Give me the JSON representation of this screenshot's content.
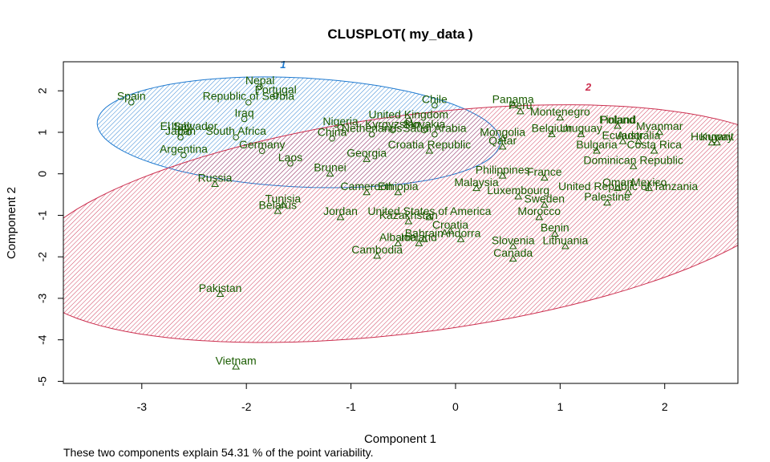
{
  "chart_data": {
    "type": "scatter",
    "title": "CLUSPLOT( my_data )",
    "xlabel": "Component 1",
    "ylabel": "Component 2",
    "xlim": [
      -3.75,
      2.7
    ],
    "ylim": [
      -5.05,
      2.7
    ],
    "xticks": [
      -3,
      -2,
      -1,
      0,
      1,
      2
    ],
    "yticks": [
      2,
      1,
      0,
      -1,
      -2,
      -3,
      -4,
      -5
    ],
    "grid": false,
    "clusters": [
      {
        "name": "1",
        "color": "#1f7ad0",
        "center": [
          -1.5,
          1.0
        ],
        "semi_axes": [
          1.95,
          1.3
        ],
        "angle_deg": -12,
        "label_pos": [
          -1.65,
          2.55
        ]
      },
      {
        "name": "2",
        "color": "#cc2f4f",
        "center": [
          -0.4,
          -1.2
        ],
        "semi_axes": [
          4.0,
          2.45
        ],
        "angle_deg": 28,
        "label_pos": [
          1.27,
          2.0
        ]
      }
    ],
    "points": [
      {
        "label": "Nepal",
        "x": -1.87,
        "y": 2.1,
        "cluster": 1
      },
      {
        "label": "Portugal",
        "x": -1.72,
        "y": 1.88,
        "cluster": 1
      },
      {
        "label": "Republic of Serbia",
        "x": -1.98,
        "y": 1.72,
        "cluster": 1
      },
      {
        "label": "Spain",
        "x": -3.1,
        "y": 1.72,
        "cluster": 1
      },
      {
        "label": "Iraq",
        "x": -2.02,
        "y": 1.32,
        "cluster": 1
      },
      {
        "label": "El Salvador",
        "x": -2.55,
        "y": 1.0,
        "cluster": 1
      },
      {
        "label": "Italy",
        "x": -2.62,
        "y": 1.0,
        "cluster": 1
      },
      {
        "label": "Japan",
        "x": -2.63,
        "y": 0.88,
        "cluster": 1
      },
      {
        "label": "South Africa",
        "x": -2.1,
        "y": 0.88,
        "cluster": 1
      },
      {
        "label": "Argentina",
        "x": -2.6,
        "y": 0.45,
        "cluster": 1
      },
      {
        "label": "Germany",
        "x": -1.85,
        "y": 0.55,
        "cluster": 1
      },
      {
        "label": "Laos",
        "x": -1.58,
        "y": 0.25,
        "cluster": 1
      },
      {
        "label": "Nigeria",
        "x": -1.1,
        "y": 1.12,
        "cluster": 1
      },
      {
        "label": "China",
        "x": -1.18,
        "y": 0.85,
        "cluster": 1
      },
      {
        "label": "Chile",
        "x": -0.2,
        "y": 1.65,
        "cluster": 1
      },
      {
        "label": "United Kingdom",
        "x": -0.45,
        "y": 1.28,
        "cluster": 1
      },
      {
        "label": "Kyrgyzstan",
        "x": -0.6,
        "y": 1.05,
        "cluster": 1
      },
      {
        "label": "Slovakia",
        "x": -0.3,
        "y": 1.05,
        "cluster": 1
      },
      {
        "label": "Netherlands",
        "x": -0.8,
        "y": 0.95,
        "cluster": 1
      },
      {
        "label": "Saudi Arabia",
        "x": -0.2,
        "y": 0.95,
        "cluster": 1
      },
      {
        "label": "Russia",
        "x": -2.3,
        "y": -0.25,
        "cluster": 2
      },
      {
        "label": "Tunisia",
        "x": -1.65,
        "y": -0.75,
        "cluster": 2
      },
      {
        "label": "Belarus",
        "x": -1.7,
        "y": -0.9,
        "cluster": 2
      },
      {
        "label": "Brunei",
        "x": -1.2,
        "y": 0.0,
        "cluster": 2
      },
      {
        "label": "Georgia",
        "x": -0.85,
        "y": 0.35,
        "cluster": 2
      },
      {
        "label": "Croatia Republic",
        "x": -0.25,
        "y": 0.55,
        "cluster": 2
      },
      {
        "label": "Panama",
        "x": 0.55,
        "y": 1.65,
        "cluster": 2
      },
      {
        "label": "Peru",
        "x": 0.62,
        "y": 1.5,
        "cluster": 2
      },
      {
        "label": "Montenegro",
        "x": 1.0,
        "y": 1.35,
        "cluster": 2
      },
      {
        "label": "Mongolia",
        "x": 0.45,
        "y": 0.85,
        "cluster": 2
      },
      {
        "label": "Qatar",
        "x": 0.45,
        "y": 0.65,
        "cluster": 2
      },
      {
        "label": "Belgium",
        "x": 0.92,
        "y": 0.95,
        "cluster": 2
      },
      {
        "label": "Uruguay",
        "x": 1.2,
        "y": 0.95,
        "cluster": 2
      },
      {
        "label": "Poland",
        "x": 1.55,
        "y": 1.15,
        "cluster": 2
      },
      {
        "label": "Finland",
        "x": 1.55,
        "y": 1.15,
        "cluster": 2
      },
      {
        "label": "Myanmar",
        "x": 1.95,
        "y": 1.0,
        "cluster": 2
      },
      {
        "label": "Ecuador",
        "x": 1.6,
        "y": 0.78,
        "cluster": 2
      },
      {
        "label": "Australia",
        "x": 1.75,
        "y": 0.78,
        "cluster": 2
      },
      {
        "label": "Bulgaria",
        "x": 1.35,
        "y": 0.55,
        "cluster": 2
      },
      {
        "label": "Costa Rica",
        "x": 1.9,
        "y": 0.55,
        "cluster": 2
      },
      {
        "label": "Hungary",
        "x": 2.45,
        "y": 0.75,
        "cluster": 2
      },
      {
        "label": "Kuwait",
        "x": 2.5,
        "y": 0.75,
        "cluster": 2
      },
      {
        "label": "Dominican Republic",
        "x": 1.7,
        "y": 0.18,
        "cluster": 2
      },
      {
        "label": "Philippines",
        "x": 0.45,
        "y": -0.05,
        "cluster": 2
      },
      {
        "label": "France",
        "x": 0.85,
        "y": -0.1,
        "cluster": 2
      },
      {
        "label": "Malaysia",
        "x": 0.2,
        "y": -0.35,
        "cluster": 2
      },
      {
        "label": "Luxembourg",
        "x": 0.6,
        "y": -0.55,
        "cluster": 2
      },
      {
        "label": "Sweden",
        "x": 0.85,
        "y": -0.75,
        "cluster": 2
      },
      {
        "label": "Oman",
        "x": 1.55,
        "y": -0.35,
        "cluster": 2
      },
      {
        "label": "Mexico",
        "x": 1.85,
        "y": -0.35,
        "cluster": 2
      },
      {
        "label": "United Republic of Tanzania",
        "x": 1.65,
        "y": -0.45,
        "cluster": 2
      },
      {
        "label": "Palestine",
        "x": 1.45,
        "y": -0.7,
        "cluster": 2
      },
      {
        "label": "Cameroon",
        "x": -0.85,
        "y": -0.45,
        "cluster": 2
      },
      {
        "label": "Ethiopia",
        "x": -0.55,
        "y": -0.45,
        "cluster": 2
      },
      {
        "label": "Jordan",
        "x": -1.1,
        "y": -1.05,
        "cluster": 2
      },
      {
        "label": "United States of America",
        "x": -0.25,
        "y": -1.05,
        "cluster": 2
      },
      {
        "label": "Kazakhstan",
        "x": -0.45,
        "y": -1.15,
        "cluster": 2
      },
      {
        "label": "Morocco",
        "x": 0.8,
        "y": -1.05,
        "cluster": 2
      },
      {
        "label": "Croatia",
        "x": -0.05,
        "y": -1.38,
        "cluster": 2
      },
      {
        "label": "Benin",
        "x": 0.95,
        "y": -1.45,
        "cluster": 2
      },
      {
        "label": "Bahrain",
        "x": -0.3,
        "y": -1.58,
        "cluster": 2
      },
      {
        "label": "Andorra",
        "x": 0.05,
        "y": -1.58,
        "cluster": 2
      },
      {
        "label": "Albania",
        "x": -0.55,
        "y": -1.68,
        "cluster": 2
      },
      {
        "label": "Iceland",
        "x": -0.35,
        "y": -1.68,
        "cluster": 2
      },
      {
        "label": "Slovenia",
        "x": 0.55,
        "y": -1.75,
        "cluster": 2
      },
      {
        "label": "Lithuania",
        "x": 1.05,
        "y": -1.75,
        "cluster": 2
      },
      {
        "label": "Cambodia",
        "x": -0.75,
        "y": -1.98,
        "cluster": 2
      },
      {
        "label": "Canada",
        "x": 0.55,
        "y": -2.05,
        "cluster": 2
      },
      {
        "label": "Pakistan",
        "x": -2.25,
        "y": -2.9,
        "cluster": 2
      },
      {
        "label": "Vietnam",
        "x": -2.1,
        "y": -4.65,
        "cluster": 2
      }
    ],
    "footnote": "These two components explain 54.31 % of the point variability."
  }
}
